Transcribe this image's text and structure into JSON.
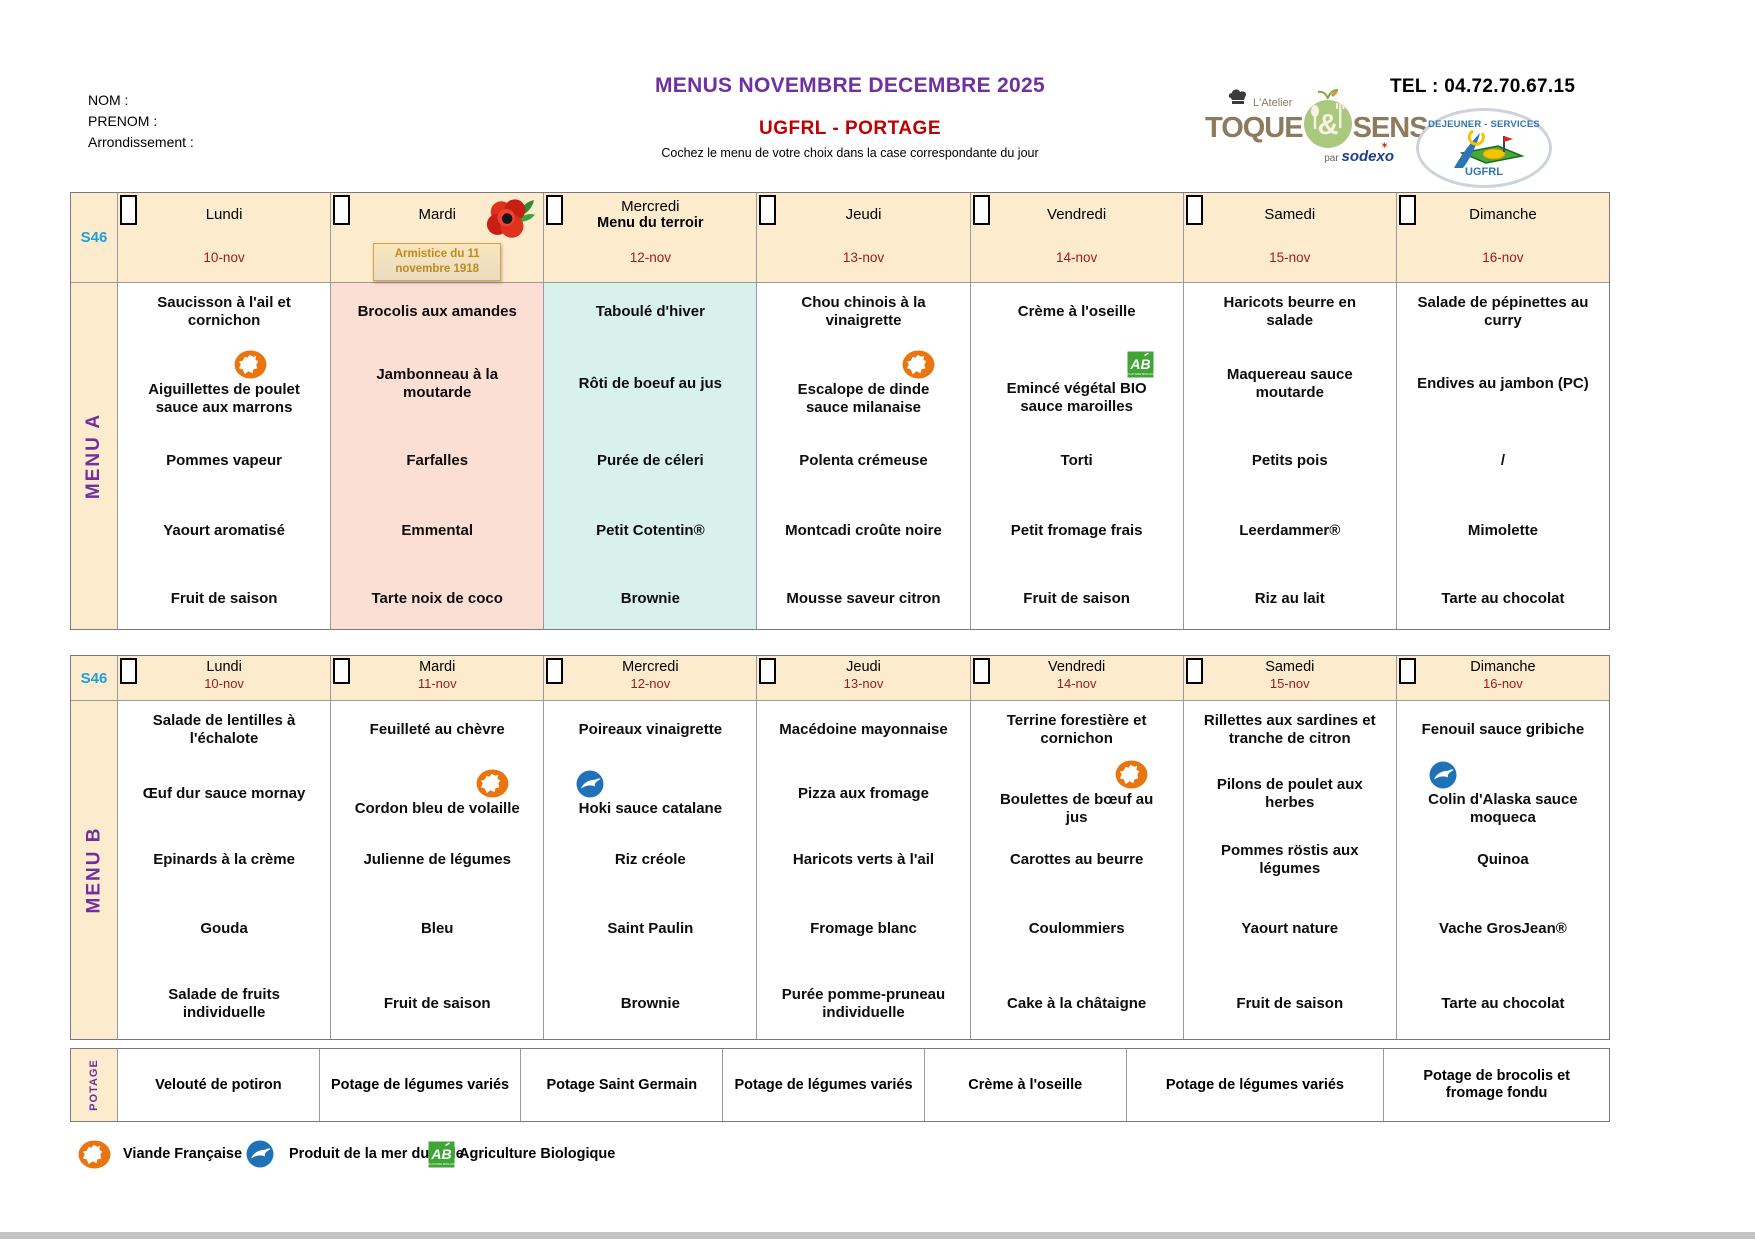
{
  "header": {
    "nom_label": "NOM :",
    "prenom_label": "PRENOM :",
    "arrondissement_label": "Arrondissement :",
    "title": "MENUS NOVEMBRE DECEMBRE 2025",
    "subtitle": "UGFRL - PORTAGE",
    "instruction": "Cochez le menu de votre choix dans la case correspondante du jour",
    "tel": "TEL : 04.72.70.67.15",
    "toque_logo": {
      "atelier": "L'Atelier",
      "toque": "TOQUE",
      "amp": "&",
      "sens": "SENS",
      "par": "par",
      "sodexo": "sodexo",
      "star": "✶"
    },
    "dejeuner_logo": {
      "line1": "DEJEUNER - SERVICES",
      "line2": "UGFRL"
    }
  },
  "colors": {
    "title_purple": "#7030A0",
    "subtitle_red": "#C00000",
    "week_blue": "#1E9FDE",
    "date_red": "#9C1A1A",
    "header_cream": "#FCEBCD",
    "mardi_pink": "#FBDFD4",
    "mercredi_cyan": "#D8F1ED",
    "vf_orange": "#E8750F",
    "fish_blue": "#1F72B8",
    "ab_green": "#3FA535"
  },
  "menus": [
    {
      "id": "menuA",
      "week_label": "S46",
      "side_label": "MENU A",
      "days": [
        {
          "name": "Lundi",
          "date": "10-nov"
        },
        {
          "name": "Mardi",
          "date": "",
          "poppy": true,
          "note": "Armistice du 11 novembre 1918"
        },
        {
          "name": "Mercredi",
          "subtitle": "Menu du terroir",
          "date": "12-nov"
        },
        {
          "name": "Jeudi",
          "date": "13-nov"
        },
        {
          "name": "Vendredi",
          "date": "14-nov"
        },
        {
          "name": "Samedi",
          "date": "15-nov"
        },
        {
          "name": "Dimanche",
          "date": "16-nov"
        }
      ],
      "col_bg": [
        "#FFFFFF",
        "#FBDFD4",
        "#D8F1ED",
        "#FFFFFF",
        "#FFFFFF",
        "#FFFFFF",
        "#FFFFFF"
      ],
      "rows": [
        [
          "Saucisson à l'ail et cornichon",
          "Brocolis aux amandes",
          "Taboulé d'hiver",
          "Chou chinois à la vinaigrette",
          "Crème à l'oseille",
          "Haricots beurre en salade",
          "Salade de pépinettes au curry"
        ],
        [
          {
            "text": "Aiguillettes de poulet sauce aux marrons",
            "icon": "vf",
            "pos": "r1"
          },
          "Jambonneau à la moutarde",
          "Rôti de boeuf au jus",
          {
            "text": "Escalope de dinde sauce milanaise",
            "icon": "vf",
            "pos": "r2"
          },
          {
            "text": "Emincé végétal BIO sauce maroilles",
            "icon": "ab",
            "pos": "r3"
          },
          "Maquereau sauce moutarde",
          "Endives au jambon (PC)"
        ],
        [
          "Pommes vapeur",
          "Farfalles",
          "Purée de céleri",
          "Polenta crémeuse",
          "Torti",
          "Petits pois",
          "/"
        ],
        [
          "Yaourt aromatisé",
          "Emmental",
          "Petit Cotentin®",
          "Montcadi croûte noire",
          "Petit fromage frais",
          "Leerdammer®",
          "Mimolette"
        ],
        [
          "Fruit de saison",
          "Tarte noix de coco",
          "Brownie",
          "Mousse saveur citron",
          "Fruit de saison",
          "Riz au lait",
          "Tarte au chocolat"
        ]
      ]
    },
    {
      "id": "menuB",
      "week_label": "S46",
      "side_label": "MENU B",
      "days": [
        {
          "name": "Lundi",
          "date": "10-nov"
        },
        {
          "name": "Mardi",
          "date": "11-nov"
        },
        {
          "name": "Mercredi",
          "date": "12-nov"
        },
        {
          "name": "Jeudi",
          "date": "13-nov"
        },
        {
          "name": "Vendredi",
          "date": "14-nov"
        },
        {
          "name": "Samedi",
          "date": "15-nov"
        },
        {
          "name": "Dimanche",
          "date": "16-nov"
        }
      ],
      "col_bg": [
        "#FFFFFF",
        "#FFFFFF",
        "#FFFFFF",
        "#FFFFFF",
        "#FFFFFF",
        "#FFFFFF",
        "#FFFFFF"
      ],
      "rows": [
        [
          "Salade de lentilles à l'échalote",
          "Feuilleté au chèvre",
          "Poireaux vinaigrette",
          "Macédoine mayonnaise",
          "Terrine forestière et cornichon",
          "Rillettes aux sardines et tranche de citron",
          "Fenouil sauce gribiche"
        ],
        [
          "Œuf dur sauce mornay",
          {
            "text": "Cordon bleu de volaille",
            "icon": "vf",
            "pos": "r2"
          },
          {
            "text": "Hoki sauce catalane",
            "icon": "fish",
            "pos": "l"
          },
          "Pizza aux fromage",
          {
            "text": "Boulettes de bœuf au jus",
            "icon": "vf",
            "pos": "r2"
          },
          "Pilons de poulet aux herbes",
          {
            "text": "Colin d'Alaska sauce moqueca",
            "icon": "fish",
            "pos": "l"
          }
        ],
        [
          "Epinards à la crème",
          "Julienne de légumes",
          "Riz créole",
          "Haricots verts à l'ail",
          "Carottes au beurre",
          "Pommes röstis aux légumes",
          "Quinoa"
        ],
        [
          "Gouda",
          "Bleu",
          "Saint Paulin",
          "Fromage blanc",
          "Coulommiers",
          "Yaourt nature",
          "Vache GrosJean®"
        ],
        [
          "Salade de fruits individuelle",
          "Fruit de saison",
          "Brownie",
          "Purée pomme-pruneau individuelle",
          "Cake à la châtaigne",
          "Fruit de saison",
          "Tarte au chocolat"
        ]
      ]
    }
  ],
  "potage": {
    "side_label": "POTAGE",
    "cells": [
      "Velouté de potiron",
      "Potage de légumes variés",
      "Potage Saint Germain",
      "Potage de légumes variés",
      "Crème à l'oseille",
      "Potage de légumes variés",
      "Potage de brocolis et fromage fondu"
    ]
  },
  "legend": [
    {
      "icon": "vf",
      "label": "Viande Française"
    },
    {
      "icon": "fish",
      "label": "Produit de la mer durable"
    },
    {
      "icon": "ab",
      "label": "Agriculture Biologique"
    }
  ]
}
